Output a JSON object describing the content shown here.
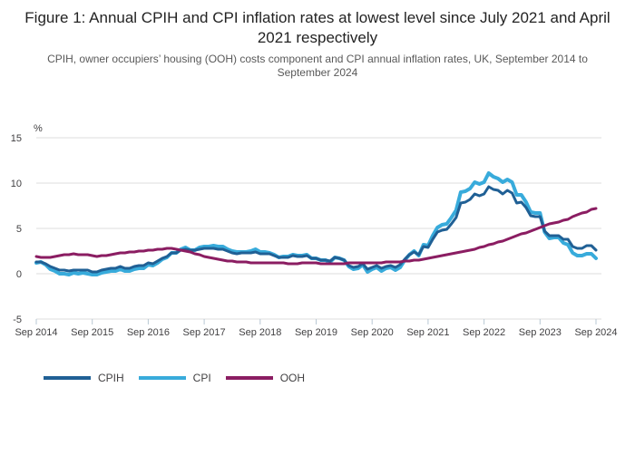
{
  "figure": {
    "title": "Figure 1: Annual CPIH and CPI inflation rates at lowest level since July 2021 and April 2021 respectively",
    "subtitle": "CPIH, owner occupiers’ housing (OOH) costs component and CPI annual inflation rates, UK, September 2014 to September 2024"
  },
  "chart_data": {
    "type": "line",
    "title": "Figure 1: Annual CPIH and CPI inflation rates at lowest level since July 2021 and April 2021 respectively",
    "subtitle": "CPIH, owner occupiers’ housing (OOH) costs component and CPI annual inflation rates, UK, September 2014 to September 2024",
    "unit_label": "%",
    "x_frequency": "monthly",
    "x_start": "Sep 2014",
    "x_end": "Sep 2024",
    "x_tick_labels": [
      "Sep 2014",
      "Sep 2015",
      "Sep 2016",
      "Sep 2017",
      "Sep 2018",
      "Sep 2019",
      "Sep 2020",
      "Sep 2021",
      "Sep 2022",
      "Sep 2023",
      "Sep 2024"
    ],
    "ylim": [
      -5,
      15
    ],
    "yticks": [
      15,
      10,
      5,
      0,
      -5
    ],
    "grid": "horizontal",
    "grid_color": "#dcdcdc",
    "axis_color": "#b9c8d4",
    "text_color": "#414042",
    "legend_position": "bottom-left",
    "series": [
      {
        "name": "CPIH",
        "color": "#206095",
        "z": 2,
        "stroke_width": 3,
        "values": [
          1.3,
          1.3,
          1.1,
          0.8,
          0.6,
          0.4,
          0.4,
          0.3,
          0.4,
          0.4,
          0.4,
          0.4,
          0.2,
          0.2,
          0.4,
          0.5,
          0.6,
          0.6,
          0.8,
          0.6,
          0.6,
          0.8,
          0.9,
          0.9,
          1.2,
          1.1,
          1.4,
          1.7,
          1.9,
          2.3,
          2.3,
          2.6,
          2.7,
          2.6,
          2.6,
          2.7,
          2.8,
          2.8,
          2.8,
          2.7,
          2.7,
          2.5,
          2.3,
          2.2,
          2.3,
          2.3,
          2.3,
          2.4,
          2.2,
          2.2,
          2.2,
          2.0,
          1.8,
          1.8,
          1.8,
          2.0,
          1.9,
          1.9,
          2.0,
          1.7,
          1.7,
          1.5,
          1.5,
          1.4,
          1.8,
          1.7,
          1.5,
          0.9,
          0.7,
          0.8,
          1.1,
          0.5,
          0.7,
          0.9,
          0.6,
          0.8,
          0.9,
          0.7,
          1.0,
          1.6,
          2.1,
          2.4,
          2.1,
          3.0,
          2.9,
          3.8,
          4.6,
          4.8,
          4.9,
          5.5,
          6.2,
          7.8,
          7.9,
          8.2,
          8.8,
          8.6,
          8.8,
          9.6,
          9.3,
          9.2,
          8.8,
          9.2,
          8.9,
          7.8,
          7.9,
          7.3,
          6.4,
          6.3,
          6.3,
          4.7,
          4.2,
          4.2,
          4.2,
          3.8,
          3.8,
          3.0,
          2.8,
          2.8,
          3.1,
          3.1,
          2.6
        ]
      },
      {
        "name": "CPI",
        "color": "#38abdb",
        "z": 1,
        "stroke_width": 4,
        "values": [
          1.2,
          1.3,
          1.0,
          0.5,
          0.3,
          0.0,
          0.0,
          -0.1,
          0.1,
          0.0,
          0.1,
          0.0,
          -0.1,
          -0.1,
          0.1,
          0.2,
          0.3,
          0.3,
          0.5,
          0.3,
          0.3,
          0.5,
          0.6,
          0.6,
          1.0,
          0.9,
          1.2,
          1.6,
          1.8,
          2.3,
          2.3,
          2.7,
          2.9,
          2.6,
          2.6,
          2.9,
          3.0,
          3.0,
          3.1,
          3.0,
          3.0,
          2.7,
          2.5,
          2.4,
          2.4,
          2.4,
          2.5,
          2.7,
          2.4,
          2.4,
          2.3,
          2.1,
          1.8,
          1.9,
          1.9,
          2.1,
          2.0,
          2.0,
          2.1,
          1.7,
          1.7,
          1.5,
          1.5,
          1.3,
          1.8,
          1.7,
          1.5,
          0.8,
          0.5,
          0.6,
          1.0,
          0.2,
          0.5,
          0.7,
          0.3,
          0.6,
          0.7,
          0.4,
          0.7,
          1.5,
          2.1,
          2.5,
          2.0,
          3.2,
          3.1,
          4.2,
          5.1,
          5.4,
          5.5,
          6.2,
          7.0,
          9.0,
          9.1,
          9.4,
          10.1,
          9.9,
          10.1,
          11.1,
          10.7,
          10.5,
          10.1,
          10.4,
          10.1,
          8.7,
          8.7,
          7.9,
          6.8,
          6.7,
          6.7,
          4.6,
          3.9,
          4.0,
          4.0,
          3.4,
          3.2,
          2.3,
          2.0,
          2.0,
          2.2,
          2.2,
          1.7
        ]
      },
      {
        "name": "OOH",
        "color": "#8b1d62",
        "z": 3,
        "stroke_width": 3,
        "values": [
          1.9,
          1.8,
          1.8,
          1.8,
          1.9,
          2.0,
          2.1,
          2.1,
          2.2,
          2.1,
          2.1,
          2.1,
          2.0,
          1.9,
          2.0,
          2.0,
          2.1,
          2.2,
          2.3,
          2.3,
          2.4,
          2.4,
          2.5,
          2.5,
          2.6,
          2.6,
          2.7,
          2.7,
          2.8,
          2.8,
          2.7,
          2.6,
          2.5,
          2.4,
          2.2,
          2.1,
          1.9,
          1.8,
          1.7,
          1.6,
          1.5,
          1.4,
          1.4,
          1.3,
          1.3,
          1.3,
          1.2,
          1.2,
          1.2,
          1.2,
          1.2,
          1.2,
          1.2,
          1.2,
          1.1,
          1.1,
          1.1,
          1.2,
          1.2,
          1.2,
          1.2,
          1.1,
          1.1,
          1.1,
          1.1,
          1.1,
          1.1,
          1.2,
          1.2,
          1.2,
          1.2,
          1.2,
          1.2,
          1.2,
          1.2,
          1.3,
          1.3,
          1.3,
          1.3,
          1.4,
          1.4,
          1.5,
          1.5,
          1.6,
          1.7,
          1.8,
          1.9,
          2.0,
          2.1,
          2.2,
          2.3,
          2.4,
          2.5,
          2.6,
          2.7,
          2.9,
          3.0,
          3.2,
          3.3,
          3.5,
          3.6,
          3.8,
          4.0,
          4.2,
          4.4,
          4.5,
          4.7,
          4.9,
          5.1,
          5.3,
          5.5,
          5.6,
          5.7,
          5.9,
          6.0,
          6.3,
          6.5,
          6.7,
          6.8,
          7.1,
          7.2
        ]
      }
    ]
  }
}
